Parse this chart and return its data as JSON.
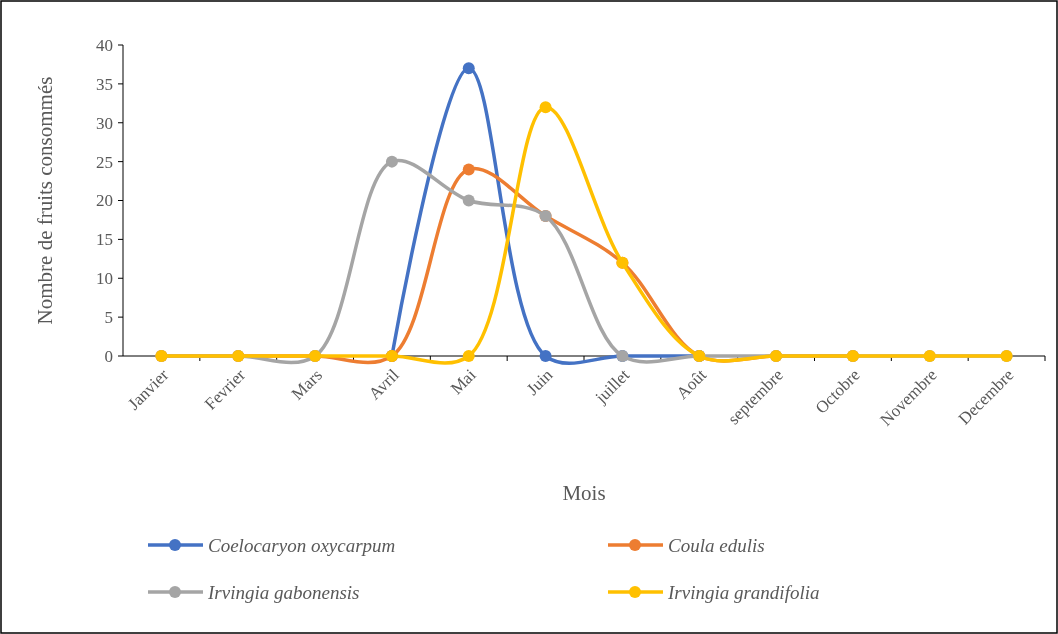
{
  "chart_data": {
    "type": "line",
    "xlabel": "Mois",
    "ylabel": "Nombre de fruits consommés",
    "categories": [
      "Janvier",
      "Fevrier",
      "Mars",
      "Avril",
      "Mai",
      "Juin",
      "juillet",
      "Août",
      "septembre",
      "Octobre",
      "Novembre",
      "Decembre"
    ],
    "series": [
      {
        "name": "Coelocaryon oxycarpum",
        "color": "#4472c4",
        "values": [
          null,
          null,
          null,
          0,
          37,
          0,
          0,
          0,
          null,
          null,
          null,
          null
        ]
      },
      {
        "name": "Coula edulis",
        "color": "#ed7d31",
        "values": [
          0,
          0,
          0,
          0,
          24,
          18,
          12,
          0,
          0,
          0,
          null,
          null
        ]
      },
      {
        "name": "Irvingia gabonensis",
        "color": "#a5a5a5",
        "values": [
          0,
          0,
          0,
          25,
          20,
          18,
          0,
          0,
          0,
          0,
          0,
          0
        ]
      },
      {
        "name": "Irvingia grandifolia",
        "color": "#ffc000",
        "values": [
          0,
          0,
          0,
          0,
          0,
          32,
          12,
          0,
          0,
          0,
          0,
          0
        ]
      }
    ],
    "ylim": [
      0,
      40
    ],
    "yticks": [
      0,
      5,
      10,
      15,
      20,
      25,
      30,
      35,
      40
    ],
    "grid": false,
    "legend": "bottom",
    "marker": "circle",
    "line_style": "solid"
  }
}
